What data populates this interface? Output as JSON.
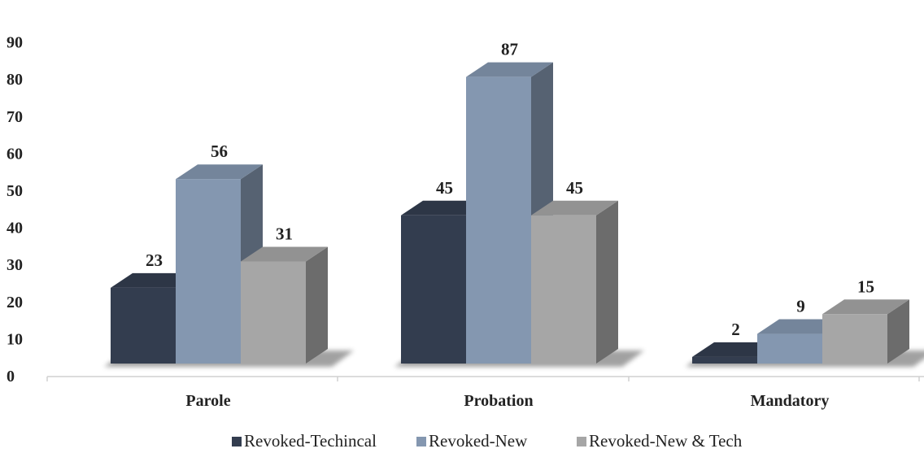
{
  "chart_data": {
    "type": "bar",
    "title": "",
    "xlabel": "",
    "ylabel": "",
    "ylim": [
      0,
      90
    ],
    "yticks": [
      0,
      10,
      20,
      30,
      40,
      50,
      60,
      70,
      80,
      90
    ],
    "categories": [
      "Parole",
      "Probation",
      "Mandatory"
    ],
    "series": [
      {
        "name": "Revoked-Techincal",
        "color": "#333d4f",
        "values": [
          23,
          45,
          2
        ]
      },
      {
        "name": "Revoked-New",
        "color": "#8497b0",
        "values": [
          56,
          87,
          9
        ]
      },
      {
        "name": "Revoked-New & Tech",
        "color": "#a6a6a6",
        "values": [
          31,
          45,
          15
        ]
      }
    ],
    "legend_position": "bottom-center",
    "grid": false,
    "style": "3d-column"
  }
}
